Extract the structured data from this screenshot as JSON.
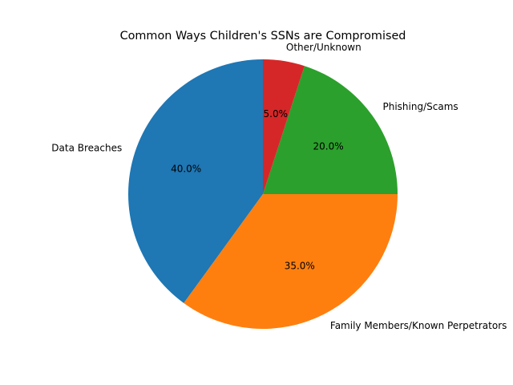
{
  "chart_data": {
    "type": "pie",
    "title": "Common Ways Children's SSNs are Compromised",
    "start_angle_deg": 90,
    "direction": "counterclockwise",
    "labels": [
      "Data Breaches",
      "Family Members/Known Perpetrators",
      "Phishing/Scams",
      "Other/Unknown"
    ],
    "values": [
      40,
      35,
      20,
      5
    ],
    "percent_labels": [
      "40.0%",
      "35.0%",
      "20.0%",
      "5.0%"
    ],
    "colors": [
      "#1f77b4",
      "#ff7f0e",
      "#2ca02c",
      "#d62728"
    ]
  }
}
